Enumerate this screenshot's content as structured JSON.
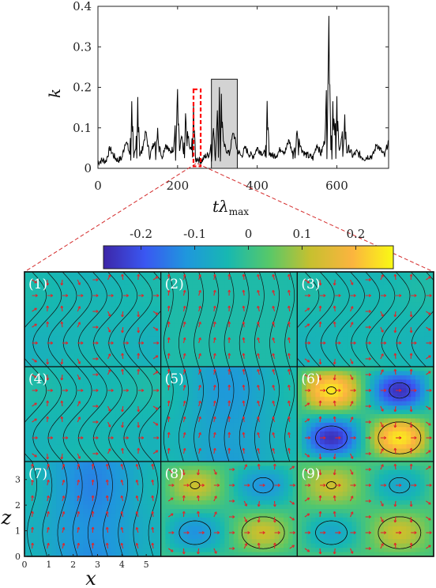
{
  "chart_data": [
    {
      "type": "line",
      "xlabel": "tλ",
      "xlabel_sub": "max",
      "ylabel": "k",
      "xlim": [
        0,
        730
      ],
      "ylim": [
        0,
        0.4
      ],
      "xticks": [
        "0",
        "200",
        "400",
        "600"
      ],
      "yticks": [
        "0",
        "0.1",
        "0.2",
        "0.3",
        "0.4"
      ],
      "highlight_box": {
        "x0": 285,
        "x1": 350,
        "y0": 0,
        "y1": 0.22,
        "color": "#d3d3d3"
      },
      "marker_box": {
        "x0": 240,
        "x1": 258,
        "y0": 0.005,
        "y1": 0.195,
        "color": "#ff0000",
        "style": "dashed"
      },
      "series": [
        {
          "x": [
            0,
            10,
            20,
            30,
            40,
            50,
            60,
            70,
            80,
            85,
            90,
            95,
            100,
            105,
            110,
            120,
            130,
            140,
            150,
            160,
            170,
            180,
            190,
            200,
            205,
            210,
            215,
            220,
            230,
            235,
            240,
            245,
            250,
            255,
            260,
            270,
            280,
            290,
            300,
            305,
            310,
            315,
            320,
            330,
            340,
            350,
            360,
            370,
            380,
            390,
            400,
            410,
            420,
            425,
            430,
            440,
            450,
            460,
            470,
            480,
            490,
            500,
            510,
            520,
            530,
            540,
            550,
            560,
            570,
            580,
            585,
            590,
            595,
            600,
            605,
            610,
            620,
            625,
            630,
            640,
            650,
            660,
            670,
            680,
            690,
            700,
            710,
            720,
            730
          ],
          "y": [
            0.015,
            0.02,
            0.018,
            0.05,
            0.03,
            0.02,
            0.025,
            0.07,
            0.035,
            0.17,
            0.03,
            0.04,
            0.175,
            0.035,
            0.04,
            0.09,
            0.03,
            0.06,
            0.1,
            0.025,
            0.06,
            0.04,
            0.05,
            0.195,
            0.04,
            0.08,
            0.035,
            0.135,
            0.05,
            0.045,
            0.165,
            0.02,
            0.025,
            0.02,
            0.018,
            0.03,
            0.035,
            0.1,
            0.15,
            0.2,
            0.18,
            0.06,
            0.05,
            0.035,
            0.09,
            0.045,
            0.03,
            0.05,
            0.035,
            0.03,
            0.05,
            0.04,
            0.035,
            0.16,
            0.04,
            0.03,
            0.035,
            0.05,
            0.04,
            0.07,
            0.03,
            0.1,
            0.05,
            0.035,
            0.03,
            0.025,
            0.06,
            0.035,
            0.07,
            0.38,
            0.05,
            0.17,
            0.09,
            0.17,
            0.05,
            0.06,
            0.13,
            0.04,
            0.05,
            0.03,
            0.04,
            0.03,
            0.025,
            0.03,
            0.03,
            0.06,
            0.045,
            0.03,
            0.07
          ]
        }
      ]
    },
    {
      "type": "heatmap",
      "colorbar_ticks": [
        "-0.2",
        "-0.1",
        "0",
        "0.1",
        "0.2"
      ],
      "colorbar_range": [
        -0.27,
        0.27
      ],
      "colorbar_stops": [
        "#3d26a8",
        "#3a57f2",
        "#1f97dd",
        "#17b8b1",
        "#57c869",
        "#c7c02f",
        "#fbb43f",
        "#f9fa14"
      ],
      "panels": [
        {
          "label": "(1)",
          "base": -0.045,
          "amp": 0.015,
          "mode": "shift"
        },
        {
          "label": "(2)",
          "base": -0.03,
          "amp": 0.005,
          "mode": "flat"
        },
        {
          "label": "(3)",
          "base": -0.04,
          "amp": 0.015,
          "mode": "shift"
        },
        {
          "label": "(4)",
          "base": -0.04,
          "amp": 0.015,
          "mode": "shift"
        },
        {
          "label": "(5)",
          "base": -0.07,
          "amp": 0.04,
          "mode": "vertical"
        },
        {
          "label": "(6)",
          "base": 0.0,
          "amp": 0.25,
          "mode": "checker"
        },
        {
          "label": "(7)",
          "base": -0.09,
          "amp": 0.05,
          "mode": "vertical"
        },
        {
          "label": "(8)",
          "base": 0.0,
          "amp": 0.12,
          "mode": "checker"
        },
        {
          "label": "(9)",
          "base": 0.02,
          "amp": 0.1,
          "mode": "checker"
        }
      ],
      "xlabel": "x",
      "ylabel": "z",
      "xticks": [
        "0",
        "1",
        "2",
        "3",
        "4",
        "5"
      ],
      "yticks": [
        "0",
        "1",
        "2",
        "3"
      ],
      "xlim": [
        0,
        5.6
      ],
      "ylim": [
        0,
        3.7
      ]
    }
  ]
}
